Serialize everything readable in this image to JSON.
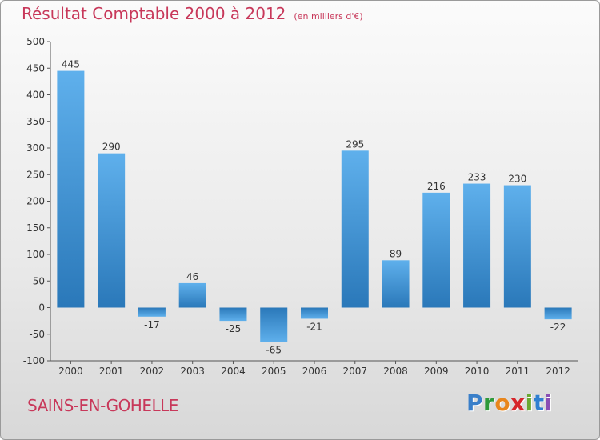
{
  "header": {
    "title": "Résultat Comptable 2000 à 2012",
    "unit": "(en milliers d'€)"
  },
  "footer": {
    "commune": "SAINS-EN-GOHELLE",
    "logo": {
      "letters": [
        "P",
        "r",
        "o",
        "x",
        "i",
        "t",
        "i"
      ],
      "colors": [
        "#3a7fc9",
        "#2e9a3a",
        "#e8861c",
        "#d6262b",
        "#6aa832",
        "#2f7fd1",
        "#8a4fb5"
      ]
    }
  },
  "chart_data": {
    "type": "bar",
    "categories": [
      "2000",
      "2001",
      "2002",
      "2003",
      "2004",
      "2005",
      "2006",
      "2007",
      "2008",
      "2009",
      "2010",
      "2011",
      "2012"
    ],
    "values": [
      445,
      290,
      -17,
      46,
      -25,
      -65,
      -21,
      295,
      89,
      216,
      233,
      230,
      -22
    ],
    "value_labels": [
      "445",
      "290",
      "-17",
      "46",
      "-25",
      "-65",
      "-21",
      "295",
      "89",
      "216",
      "233",
      "230",
      "-22"
    ],
    "title": "Résultat Comptable 2000 à 2012",
    "xlabel": "",
    "ylabel": "",
    "ylim": [
      -100,
      500
    ],
    "yticks": [
      -100,
      -50,
      0,
      50,
      100,
      150,
      200,
      250,
      300,
      350,
      400,
      450,
      500
    ],
    "grid": false,
    "legend": "none",
    "bar_color": "#3d8fd6"
  }
}
